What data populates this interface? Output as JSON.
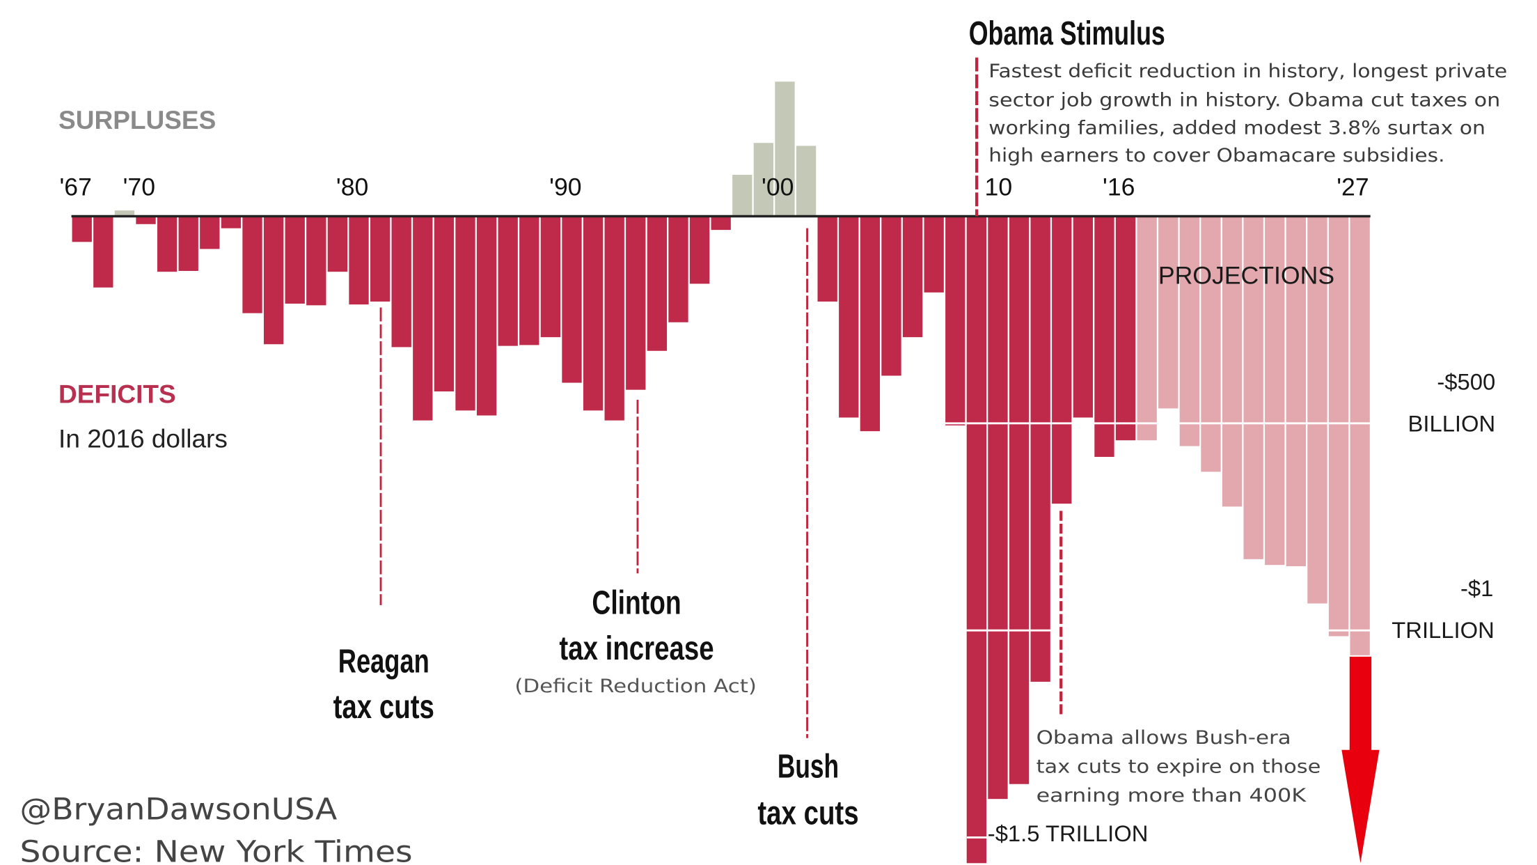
{
  "chart_data": {
    "type": "bar",
    "title": "Obama Stimulus",
    "subtitle": "In 2016 dollars",
    "xlabel": "",
    "ylabel": "",
    "units": "billions of 2016 dollars (negative = deficit)",
    "ylim": [
      -1600,
      350
    ],
    "grid": false,
    "x_tick_labels": [
      "'67",
      "'70",
      "'80",
      "'90",
      "'00",
      "10",
      "'16",
      "'27"
    ],
    "x_tick_years": [
      1967,
      1970,
      1980,
      1990,
      2000,
      2010,
      2016,
      2027
    ],
    "y_labels": [
      {
        "value": -500,
        "line1": "-$500",
        "line2": "BILLION"
      },
      {
        "value": -1000,
        "line1": "-$1",
        "line2": "TRILLION"
      },
      {
        "value": -1500,
        "text": "-$1.5 TRILLION"
      }
    ],
    "projection_start_year": 2017,
    "years": [
      1967,
      1968,
      1969,
      1970,
      1971,
      1972,
      1973,
      1974,
      1975,
      1976,
      1977,
      1978,
      1979,
      1980,
      1981,
      1982,
      1983,
      1984,
      1985,
      1986,
      1987,
      1988,
      1989,
      1990,
      1991,
      1992,
      1993,
      1994,
      1995,
      1996,
      1997,
      1998,
      1999,
      2000,
      2001,
      2002,
      2003,
      2004,
      2005,
      2006,
      2007,
      2008,
      2009,
      2010,
      2011,
      2012,
      2013,
      2014,
      2015,
      2016,
      2017,
      2018,
      2019,
      2020,
      2021,
      2022,
      2023,
      2024,
      2025,
      2026,
      2027
    ],
    "values": [
      -62,
      -172,
      14,
      -19,
      -134,
      -132,
      -79,
      -29,
      -234,
      -309,
      -211,
      -215,
      -134,
      -213,
      -206,
      -316,
      -493,
      -423,
      -469,
      -481,
      -313,
      -311,
      -292,
      -402,
      -469,
      -493,
      -419,
      -325,
      -256,
      -163,
      -33,
      100,
      177,
      325,
      170,
      -206,
      -486,
      -519,
      -385,
      -292,
      -184,
      -505,
      -1562,
      -1407,
      -1371,
      -1124,
      -694,
      -486,
      -581,
      -541,
      -541,
      -464,
      -555,
      -617,
      -701,
      -828,
      -842,
      -845,
      -935,
      -1014,
      -1060
    ],
    "annotations": {
      "surpluses": "SURPLUSES",
      "deficits": "DEFICITS",
      "in_dollars": "In 2016 dollars",
      "projections": "PROJECTIONS",
      "obama_title": "Obama Stimulus",
      "obama_text": [
        "Fastest deficit reduction in history, longest private",
        "sector job growth in history. Obama cut taxes on",
        "working families, added modest 3.8% surtax on",
        "high earners to cover Obamacare subsidies."
      ],
      "reagan": [
        "Reagan",
        "tax cuts"
      ],
      "clinton": [
        "Clinton",
        "tax increase"
      ],
      "clinton_sub": "(Deficit Reduction Act)",
      "bush": [
        "Bush",
        "tax cuts"
      ],
      "obama_bush": [
        "Obama allows Bush-era",
        "tax cuts to expire on those",
        "earning  more than 400K"
      ]
    },
    "colors": {
      "deficit": "#bf2a4a",
      "surplus": "#c3c9b6",
      "projection": "#e2a8ae",
      "arrow": "#e8000f",
      "surpluses_label": "#8a8a8a",
      "deficits_label": "#b8304f"
    }
  },
  "footer": {
    "handle": "@BryanDawsonUSA",
    "source": "Source: New York Times"
  }
}
